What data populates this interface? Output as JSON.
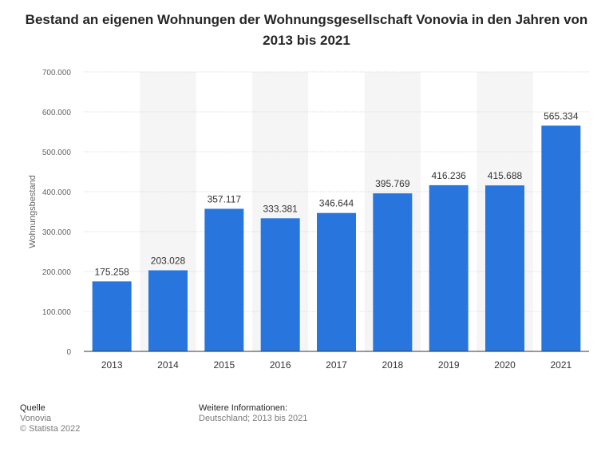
{
  "title": "Bestand an eigenen Wohnungen der Wohnungsgesellschaft Vonovia in den Jahren von 2013 bis 2021",
  "chart_data": {
    "type": "bar",
    "categories": [
      "2013",
      "2014",
      "2015",
      "2016",
      "2017",
      "2018",
      "2019",
      "2020",
      "2021"
    ],
    "values": [
      175258,
      203028,
      357117,
      333381,
      346644,
      395769,
      416236,
      415688,
      565334
    ],
    "value_labels": [
      "175.258",
      "203.028",
      "357.117",
      "333.381",
      "346.644",
      "395.769",
      "416.236",
      "415.688",
      "565.334"
    ],
    "ylabel": "Wohnungsbestand",
    "xlabel": "",
    "ylim": [
      0,
      700000
    ],
    "yticks": [
      0,
      100000,
      200000,
      300000,
      400000,
      500000,
      600000,
      700000
    ],
    "ytick_labels": [
      "0",
      "100.000",
      "200.000",
      "300.000",
      "400.000",
      "500.000",
      "600.000",
      "700.000"
    ],
    "grid": true,
    "bar_color": "#2876dd"
  },
  "footer": {
    "source_heading": "Quelle",
    "source": "Vonovia",
    "copyright": "© Statista 2022",
    "info_heading": "Weitere Informationen:",
    "info": "Deutschland; 2013 bis 2021"
  }
}
